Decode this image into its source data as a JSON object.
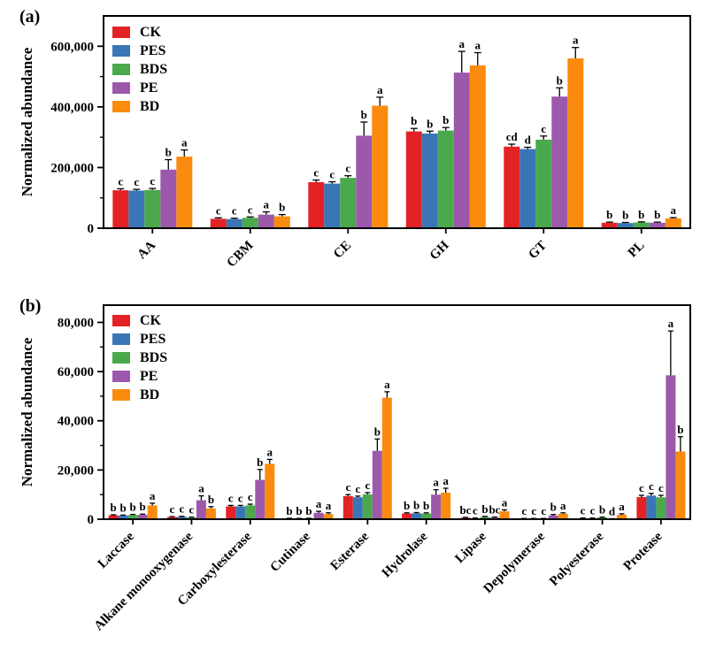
{
  "figure": {
    "background": "#ffffff",
    "axis_color": "#000000",
    "series_names": [
      "CK",
      "PES",
      "BDS",
      "PE",
      "BD"
    ],
    "series_colors": [
      "#e32225",
      "#3a76b5",
      "#4aa94d",
      "#9c59ab",
      "#fa8b0e"
    ]
  },
  "chart_data": [
    {
      "type": "bar",
      "panel_label": "(a)",
      "title": "",
      "xlabel": "",
      "ylabel": "Normalized abundance",
      "ylim": [
        0,
        700000
      ],
      "yticks": [
        0,
        200000,
        400000,
        600000
      ],
      "ytick_labels": [
        "0",
        "200,000",
        "400,000",
        "600,000"
      ],
      "minor_tick_step": 100000,
      "grid": false,
      "legend_position": "top-left-inside",
      "error_bars": "upper-sd-with-cap",
      "significance_letters": true,
      "categories": [
        "AA",
        "CBM",
        "CE",
        "GH",
        "GT",
        "PL"
      ],
      "series": [
        {
          "name": "CK",
          "color": "#e32225",
          "values": [
            125000,
            31000,
            152000,
            319000,
            269000,
            18000
          ],
          "errors": [
            5000,
            3000,
            7000,
            10000,
            8000,
            2000
          ],
          "letters": [
            "c",
            "c",
            "c",
            "b",
            "cd",
            "b"
          ]
        },
        {
          "name": "PES",
          "color": "#3a76b5",
          "values": [
            124000,
            30000,
            147000,
            312000,
            261000,
            17000
          ],
          "errors": [
            4000,
            3000,
            6000,
            8000,
            6000,
            2000
          ],
          "letters": [
            "c",
            "c",
            "c",
            "b",
            "d",
            "b"
          ]
        },
        {
          "name": "BDS",
          "color": "#4aa94d",
          "values": [
            126000,
            34000,
            166000,
            322000,
            292000,
            19000
          ],
          "errors": [
            5000,
            3000,
            7000,
            10000,
            12000,
            2000
          ],
          "letters": [
            "c",
            "c",
            "c",
            "b",
            "c",
            "b"
          ]
        },
        {
          "name": "PE",
          "color": "#9c59ab",
          "values": [
            193000,
            45000,
            305000,
            513000,
            434000,
            18000
          ],
          "errors": [
            33000,
            9000,
            45000,
            70000,
            29000,
            2000
          ],
          "letters": [
            "b",
            "a",
            "b",
            "a",
            "b",
            "b"
          ]
        },
        {
          "name": "BD",
          "color": "#fa8b0e",
          "values": [
            236000,
            39000,
            404000,
            537000,
            560000,
            32000
          ],
          "errors": [
            22000,
            6000,
            28000,
            42000,
            36000,
            3000
          ],
          "letters": [
            "a",
            "b",
            "a",
            "a",
            "a",
            "a"
          ]
        }
      ]
    },
    {
      "type": "bar",
      "panel_label": "(b)",
      "title": "",
      "xlabel": "",
      "ylabel": "Normalized abundance",
      "ylim": [
        0,
        87000
      ],
      "yticks": [
        0,
        20000,
        40000,
        60000,
        80000
      ],
      "ytick_labels": [
        "0",
        "20,000",
        "40,000",
        "60,000",
        "80,000"
      ],
      "minor_tick_step": 10000,
      "grid": false,
      "legend_position": "top-left-inside",
      "error_bars": "upper-sd-with-cap",
      "significance_letters": true,
      "categories": [
        "Laccase",
        "Alkane monooxygenase",
        "Carboxylesterase",
        "Cutinase",
        "Esterase",
        "Hydrolase",
        "Lipase",
        "Depolymerase",
        "Polyesterase",
        "Protease"
      ],
      "series": [
        {
          "name": "CK",
          "color": "#e32225",
          "values": [
            1600,
            900,
            5200,
            300,
            9400,
            2300,
            600,
            250,
            400,
            9000
          ],
          "errors": [
            200,
            150,
            400,
            80,
            600,
            300,
            150,
            60,
            100,
            700
          ],
          "letters": [
            "b",
            "c",
            "c",
            "b",
            "c",
            "b",
            "bc",
            "c",
            "c",
            "c"
          ]
        },
        {
          "name": "PES",
          "color": "#3a76b5",
          "values": [
            1500,
            1000,
            5200,
            250,
            8900,
            2400,
            400,
            250,
            350,
            9600
          ],
          "errors": [
            200,
            200,
            400,
            70,
            500,
            300,
            100,
            60,
            100,
            900
          ],
          "letters": [
            "b",
            "c",
            "c",
            "b",
            "c",
            "b",
            "c",
            "c",
            "c",
            "c"
          ]
        },
        {
          "name": "BDS",
          "color": "#4aa94d",
          "values": [
            1700,
            700,
            5600,
            300,
            10100,
            2300,
            900,
            250,
            700,
            8900
          ],
          "errors": [
            250,
            150,
            500,
            80,
            700,
            300,
            250,
            60,
            150,
            800
          ],
          "letters": [
            "b",
            "c",
            "c",
            "b",
            "c",
            "b",
            "b",
            "c",
            "b",
            "c"
          ]
        },
        {
          "name": "PE",
          "color": "#9c59ab",
          "values": [
            1800,
            7700,
            16000,
            2600,
            27800,
            10000,
            700,
            1500,
            150,
            58500
          ],
          "errors": [
            300,
            1800,
            4200,
            600,
            4800,
            2000,
            200,
            400,
            80,
            18000
          ],
          "letters": [
            "b",
            "a",
            "b",
            "a",
            "b",
            "a",
            "bc",
            "b",
            "d",
            "a"
          ]
        },
        {
          "name": "BD",
          "color": "#fa8b0e",
          "values": [
            5600,
            4400,
            22500,
            2100,
            49400,
            10800,
            3200,
            2200,
            1800,
            27500
          ],
          "errors": [
            900,
            700,
            1800,
            500,
            2400,
            1800,
            600,
            400,
            400,
            6000
          ],
          "letters": [
            "a",
            "b",
            "a",
            "a",
            "a",
            "a",
            "a",
            "a",
            "a",
            "b"
          ]
        }
      ]
    }
  ]
}
